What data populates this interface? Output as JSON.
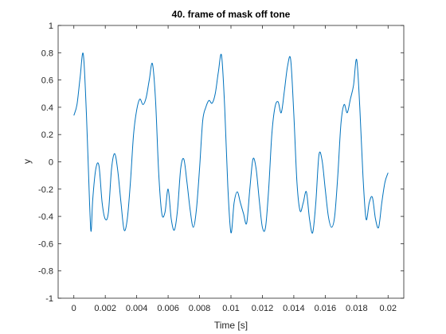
{
  "chart_data": {
    "type": "line",
    "title": "40. frame of mask off tone",
    "xlabel": "Time [s]",
    "ylabel": "y",
    "xlim": [
      -0.001,
      0.021
    ],
    "ylim": [
      -1,
      1
    ],
    "x_ticks": [
      0,
      0.002,
      0.004,
      0.006,
      0.008,
      0.01,
      0.012,
      0.014,
      0.016,
      0.018,
      0.02
    ],
    "x_tick_labels": [
      "0",
      "0.002",
      "0.004",
      "0.006",
      "0.008",
      "0.01",
      "0.012",
      "0.014",
      "0.016",
      "0.018",
      "0.02"
    ],
    "y_ticks": [
      -1,
      -0.8,
      -0.6,
      -0.4,
      -0.2,
      0,
      0.2,
      0.4,
      0.6,
      0.8,
      1
    ],
    "y_tick_labels": [
      "-1",
      "-0.8",
      "-0.6",
      "-0.4",
      "-0.2",
      "0",
      "0.2",
      "0.4",
      "0.6",
      "0.8",
      "1"
    ],
    "grid": false,
    "box": true,
    "line_color": "#0072bd",
    "series": [
      {
        "x": [
          0,
          0.0002,
          0.0004,
          0.0006,
          0.0008,
          0.001,
          0.0011,
          0.0012,
          0.0014,
          0.0016,
          0.0018,
          0.002,
          0.0022,
          0.0024,
          0.0026,
          0.0028,
          0.003,
          0.0032,
          0.0034,
          0.0036,
          0.0038,
          0.004,
          0.0042,
          0.0044,
          0.0046,
          0.0048,
          0.005,
          0.0052,
          0.0054,
          0.0056,
          0.0058,
          0.006,
          0.0062,
          0.0064,
          0.0066,
          0.0068,
          0.007,
          0.0072,
          0.0074,
          0.0076,
          0.0078,
          0.008,
          0.0082,
          0.0084,
          0.0086,
          0.0088,
          0.009,
          0.0092,
          0.0094,
          0.0096,
          0.0098,
          0.01,
          0.0102,
          0.0104,
          0.0106,
          0.0108,
          0.011,
          0.0112,
          0.0114,
          0.0116,
          0.0118,
          0.012,
          0.0122,
          0.0124,
          0.0126,
          0.0128,
          0.013,
          0.0132,
          0.0134,
          0.0136,
          0.0138,
          0.014,
          0.0142,
          0.0144,
          0.0146,
          0.0148,
          0.015,
          0.0152,
          0.0154,
          0.0156,
          0.0158,
          0.016,
          0.0162,
          0.0164,
          0.0166,
          0.0168,
          0.017,
          0.0172,
          0.0174,
          0.0176,
          0.0178,
          0.018,
          0.0182,
          0.0184,
          0.0186,
          0.0188,
          0.019,
          0.0192,
          0.0194,
          0.0196,
          0.0198,
          0.02
        ],
        "y": [
          0.34,
          0.42,
          0.62,
          0.79,
          0.35,
          -0.3,
          -0.51,
          -0.28,
          -0.05,
          -0.03,
          -0.3,
          -0.42,
          -0.37,
          -0.05,
          0.06,
          -0.07,
          -0.3,
          -0.5,
          -0.42,
          -0.15,
          0.2,
          0.38,
          0.46,
          0.42,
          0.47,
          0.6,
          0.72,
          0.45,
          -0.08,
          -0.38,
          -0.37,
          -0.2,
          -0.42,
          -0.5,
          -0.35,
          -0.05,
          0.02,
          -0.15,
          -0.35,
          -0.48,
          -0.35,
          -0.05,
          0.3,
          0.4,
          0.45,
          0.43,
          0.5,
          0.66,
          0.78,
          0.4,
          -0.18,
          -0.52,
          -0.3,
          -0.22,
          -0.3,
          -0.38,
          -0.45,
          -0.2,
          0.02,
          -0.05,
          -0.28,
          -0.48,
          -0.48,
          -0.2,
          0.2,
          0.4,
          0.44,
          0.36,
          0.52,
          0.7,
          0.75,
          0.35,
          -0.15,
          -0.36,
          -0.3,
          -0.22,
          -0.42,
          -0.52,
          -0.3,
          0.05,
          0.01,
          -0.2,
          -0.4,
          -0.48,
          -0.4,
          -0.1,
          0.28,
          0.42,
          0.36,
          0.46,
          0.56,
          0.75,
          0.4,
          -0.1,
          -0.42,
          -0.3,
          -0.26,
          -0.42,
          -0.48,
          -0.3,
          -0.15,
          -0.08
        ]
      }
    ]
  }
}
